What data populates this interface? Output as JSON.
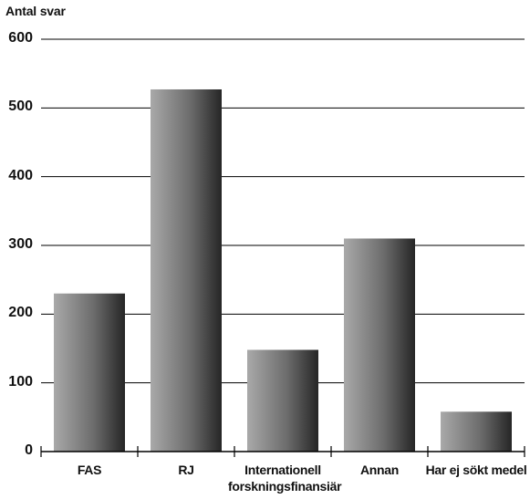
{
  "chart_data": {
    "type": "bar",
    "title": "",
    "ylabel": "Antal svar",
    "xlabel": "",
    "categories": [
      [
        "FAS"
      ],
      [
        "RJ"
      ],
      [
        "Internationell",
        "forskningsfinansiär"
      ],
      [
        "Annan"
      ],
      [
        "Har ej sökt medel"
      ]
    ],
    "values": [
      230,
      527,
      148,
      310,
      58
    ],
    "ylim": [
      0,
      600
    ],
    "yticks": [
      0,
      100,
      200,
      300,
      400,
      500,
      600
    ],
    "grid": true,
    "legend": "none",
    "colors": {
      "bar_light": "#a9a9a9",
      "bar_mid": "#6d6d6d",
      "bar_dark": "#262626",
      "grid": "#000000"
    }
  }
}
